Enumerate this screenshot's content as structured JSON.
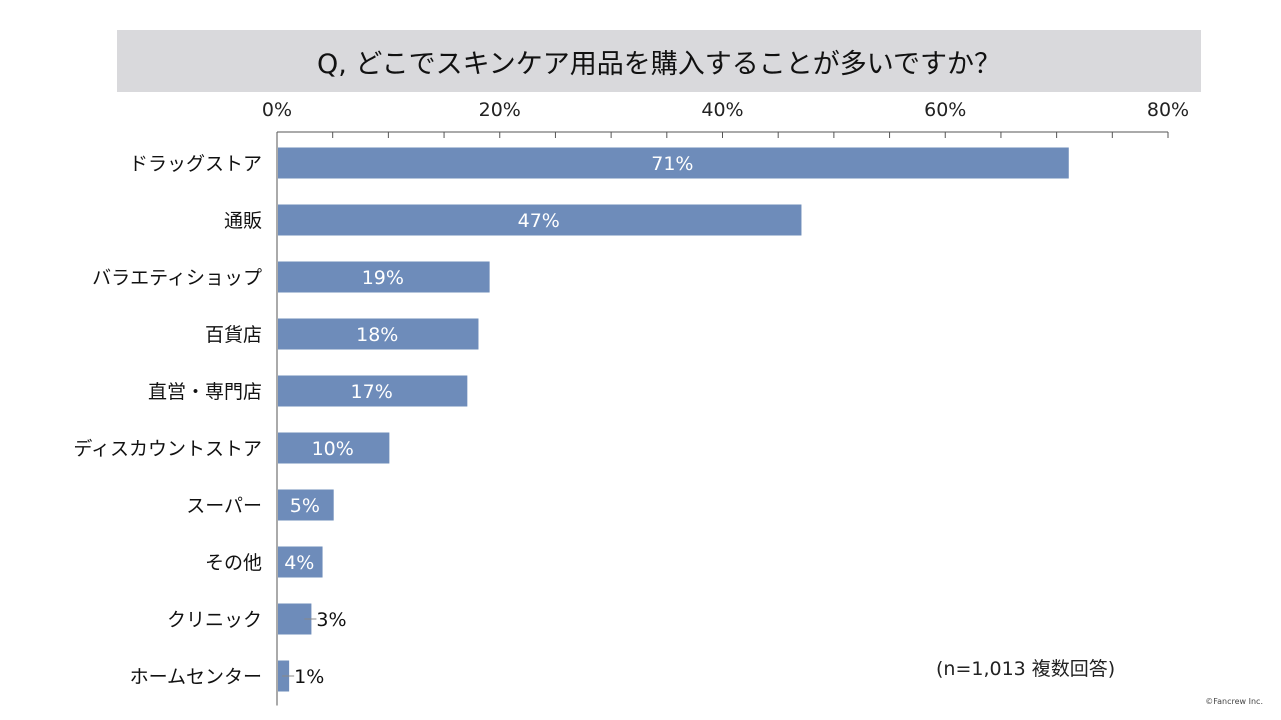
{
  "chart_data": {
    "type": "bar",
    "orientation": "horizontal",
    "title": "Q, どこでスキンケア用品を購入することが多いですか？",
    "categories": [
      "ドラッグストア",
      "通販",
      "バラエティショップ",
      "百貨店",
      "直営・専門店",
      "ディスカウントストア",
      "スーパー",
      "その他",
      "クリニック",
      "ホームセンター"
    ],
    "values": [
      71,
      47,
      19,
      18,
      17,
      10,
      5,
      4,
      3,
      1
    ],
    "data_labels": [
      "71%",
      "47%",
      "19%",
      "18%",
      "17%",
      "10%",
      "5%",
      "4%",
      "3%",
      "1%"
    ],
    "xlim": [
      0,
      80
    ],
    "ticks": [
      0,
      20,
      40,
      60,
      80
    ],
    "tick_labels": [
      "0%",
      "20%",
      "40%",
      "60%",
      "80%"
    ],
    "axis_position": "top",
    "grid": false,
    "bar_color": "#6e8cba"
  },
  "note": "(n=1,013 複数回答)",
  "copyright": "©Fancrew Inc."
}
